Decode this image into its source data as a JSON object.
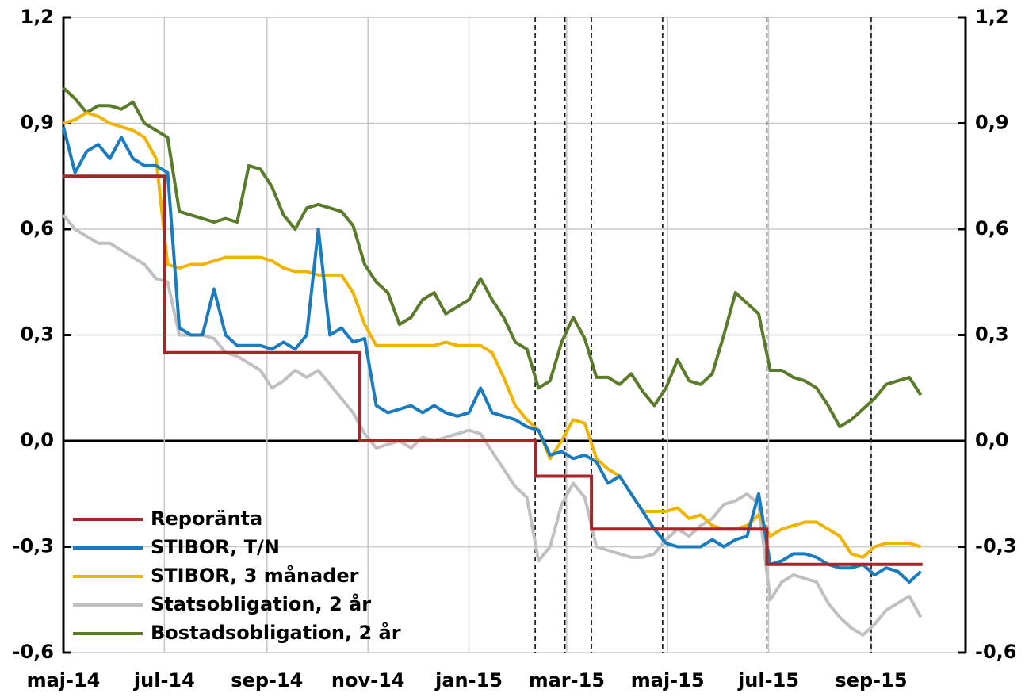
{
  "chart_data": {
    "type": "line",
    "x": [
      0,
      7,
      14,
      21,
      28,
      35,
      42,
      49,
      56,
      63,
      70,
      77,
      84,
      91,
      98,
      105,
      112,
      119,
      126,
      133,
      140,
      147,
      154,
      161,
      168,
      175,
      182,
      189,
      196,
      203,
      210,
      217,
      224,
      231,
      238,
      245,
      252,
      259,
      266,
      273,
      280,
      287,
      294,
      301,
      308,
      315,
      322,
      329,
      336,
      343,
      350,
      357,
      364,
      371,
      378,
      385,
      392,
      399,
      406,
      413,
      420,
      427,
      434,
      441,
      448,
      455,
      462,
      469,
      476,
      483,
      490,
      497,
      504,
      511,
      518
    ],
    "xlim": [
      0,
      545
    ],
    "xticks": [
      {
        "value": 0,
        "label": "maj-14"
      },
      {
        "value": 61,
        "label": "jul-14"
      },
      {
        "value": 123,
        "label": "sep-14"
      },
      {
        "value": 184,
        "label": "nov-14"
      },
      {
        "value": 245,
        "label": "jan-15"
      },
      {
        "value": 304,
        "label": "mar-15"
      },
      {
        "value": 365,
        "label": "maj-15"
      },
      {
        "value": 426,
        "label": "jul-15"
      },
      {
        "value": 488,
        "label": "sep-15"
      }
    ],
    "ylim": [
      -0.6,
      1.2
    ],
    "yticks": [
      {
        "value": -0.6,
        "label": "-0,6"
      },
      {
        "value": -0.3,
        "label": "-0,3"
      },
      {
        "value": 0,
        "label": "0,0"
      },
      {
        "value": 0.3,
        "label": "0,3"
      },
      {
        "value": 0.6,
        "label": "0,6"
      },
      {
        "value": 0.9,
        "label": "0,9"
      },
      {
        "value": 1.2,
        "label": "1,2"
      }
    ],
    "y2lim": [
      -0.6,
      1.2
    ],
    "y2ticks": [
      {
        "value": -0.6,
        "label": "-0,6"
      },
      {
        "value": -0.3,
        "label": "-0,3"
      },
      {
        "value": 0,
        "label": "0,0"
      },
      {
        "value": 0.3,
        "label": "0,3"
      },
      {
        "value": 0.6,
        "label": "0,6"
      },
      {
        "value": 0.9,
        "label": "0,9"
      },
      {
        "value": 1.2,
        "label": "1,2"
      }
    ],
    "event_lines": [
      285,
      303,
      319,
      362,
      425,
      488
    ],
    "grid": true,
    "legend": "lower left",
    "series": [
      {
        "name": "Reporänta",
        "color": "#a3262a",
        "x": [
          0,
          61,
          61,
          179,
          179,
          285,
          285,
          319,
          319,
          425,
          425,
          519
        ],
        "values": [
          0.75,
          0.75,
          0.25,
          0.25,
          0,
          0,
          -0.1,
          -0.1,
          -0.25,
          -0.25,
          -0.35,
          -0.35
        ]
      },
      {
        "name": "STIBOR, T/N",
        "color": "#1a7bc0",
        "values": [
          0.89,
          0.76,
          0.82,
          0.84,
          0.8,
          0.86,
          0.8,
          0.78,
          0.78,
          0.76,
          0.32,
          0.3,
          0.3,
          0.43,
          0.3,
          0.27,
          0.27,
          0.27,
          0.26,
          0.28,
          0.26,
          0.3,
          0.6,
          0.3,
          0.32,
          0.28,
          0.29,
          0.1,
          0.08,
          0.09,
          0.1,
          0.08,
          0.1,
          0.08,
          0.07,
          0.08,
          0.15,
          0.08,
          0.07,
          0.06,
          0.04,
          0.03,
          -0.04,
          -0.03,
          -0.05,
          -0.04,
          -0.06,
          -0.12,
          -0.1,
          -0.15,
          -0.2,
          -0.25,
          -0.29,
          -0.3,
          -0.3,
          -0.3,
          -0.28,
          -0.3,
          -0.28,
          -0.27,
          -0.15,
          -0.35,
          -0.34,
          -0.32,
          -0.32,
          -0.33,
          -0.35,
          -0.36,
          -0.36,
          -0.35,
          -0.38,
          -0.36,
          -0.37,
          -0.4,
          -0.37
        ]
      },
      {
        "name": "STIBOR, 3 månader",
        "color": "#f0b400",
        "values": [
          0.9,
          0.91,
          0.93,
          0.92,
          0.9,
          0.89,
          0.88,
          0.86,
          0.8,
          0.5,
          0.49,
          0.5,
          0.5,
          0.51,
          0.52,
          0.52,
          0.52,
          0.52,
          0.51,
          0.49,
          0.48,
          0.48,
          0.47,
          0.47,
          0.47,
          0.42,
          0.33,
          0.27,
          0.27,
          0.27,
          0.27,
          0.27,
          0.27,
          0.28,
          0.27,
          0.27,
          0.27,
          0.25,
          0.18,
          0.1,
          0.06,
          0.03,
          -0.05,
          0.0,
          0.06,
          0.05,
          -0.05,
          -0.08,
          -0.1,
          -0.15,
          -0.2,
          -0.2,
          -0.2,
          -0.19,
          -0.22,
          -0.21,
          -0.24,
          -0.25,
          -0.25,
          -0.24,
          -0.21,
          -0.27,
          -0.25,
          -0.24,
          -0.23,
          -0.23,
          -0.25,
          -0.27,
          -0.32,
          -0.33,
          -0.3,
          -0.29,
          -0.29,
          -0.29,
          -0.3
        ]
      },
      {
        "name": "Statsobligation, 2 år",
        "color": "#c0c0c0",
        "values": [
          0.64,
          0.6,
          0.58,
          0.56,
          0.56,
          0.54,
          0.52,
          0.5,
          0.46,
          0.45,
          0.3,
          0.3,
          0.3,
          0.29,
          0.25,
          0.24,
          0.22,
          0.2,
          0.15,
          0.17,
          0.2,
          0.18,
          0.2,
          0.16,
          0.12,
          0.08,
          0.02,
          -0.02,
          -0.01,
          0.0,
          -0.02,
          0.01,
          0.0,
          0.01,
          0.02,
          0.03,
          0.02,
          -0.03,
          -0.08,
          -0.13,
          -0.16,
          -0.34,
          -0.3,
          -0.18,
          -0.12,
          -0.16,
          -0.3,
          -0.31,
          -0.32,
          -0.33,
          -0.33,
          -0.32,
          -0.28,
          -0.25,
          -0.27,
          -0.24,
          -0.22,
          -0.18,
          -0.17,
          -0.15,
          -0.18,
          -0.45,
          -0.4,
          -0.38,
          -0.39,
          -0.4,
          -0.46,
          -0.5,
          -0.53,
          -0.55,
          -0.52,
          -0.48,
          -0.46,
          -0.44,
          -0.5
        ]
      },
      {
        "name": "Bostadsobligation, 2 år",
        "color": "#5a7b2a",
        "values": [
          1.0,
          0.97,
          0.93,
          0.95,
          0.95,
          0.94,
          0.96,
          0.9,
          0.88,
          0.86,
          0.65,
          0.64,
          0.63,
          0.62,
          0.63,
          0.62,
          0.78,
          0.77,
          0.72,
          0.64,
          0.6,
          0.66,
          0.67,
          0.66,
          0.65,
          0.61,
          0.5,
          0.45,
          0.42,
          0.33,
          0.35,
          0.4,
          0.42,
          0.36,
          0.38,
          0.4,
          0.46,
          0.4,
          0.35,
          0.28,
          0.26,
          0.15,
          0.17,
          0.28,
          0.35,
          0.29,
          0.18,
          0.18,
          0.16,
          0.19,
          0.14,
          0.1,
          0.15,
          0.23,
          0.17,
          0.16,
          0.19,
          0.3,
          0.42,
          0.39,
          0.36,
          0.2,
          0.2,
          0.18,
          0.17,
          0.15,
          0.1,
          0.04,
          0.06,
          0.09,
          0.12,
          0.16,
          0.17,
          0.18,
          0.13
        ]
      }
    ]
  }
}
